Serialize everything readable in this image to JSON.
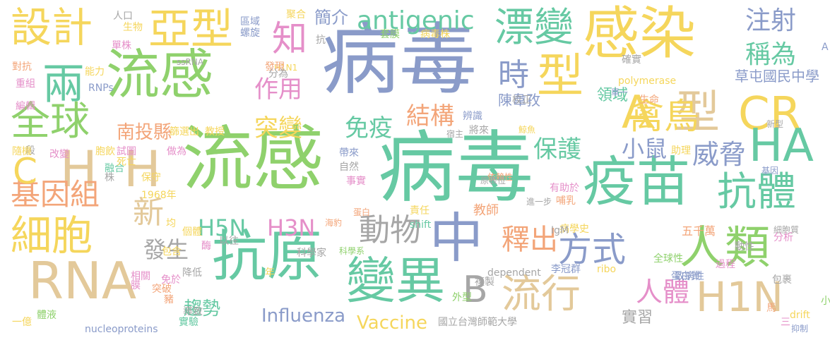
{
  "palette": {
    "green": "#8fd16c",
    "yellow": "#f5d65c",
    "tan": "#e3c99a",
    "slate": "#8a9bc9",
    "teal": "#66c9a3",
    "gray": "#a6a6a6",
    "orange": "#f3a579",
    "pink": "#e58fc9",
    "brown": "#d6bf93"
  },
  "words": [
    {
      "text": "病毒",
      "color": "#8a9bc9",
      "rotate": 0
    },
    {
      "text": "病毒",
      "color": "#66c9a3",
      "rotate": 0
    },
    {
      "text": "流感",
      "color": "#8fd16c",
      "rotate": 0
    },
    {
      "text": "流感",
      "color": "#8fd16c",
      "rotate": 0
    },
    {
      "text": "感染",
      "color": "#f5d65c",
      "rotate": 0
    },
    {
      "text": "疫苗",
      "color": "#66c9a3",
      "rotate": 0
    },
    {
      "text": "抗原",
      "color": "#66c9a3",
      "rotate": 0
    },
    {
      "text": "RNA",
      "color": "#e3c99a",
      "rotate": 0
    },
    {
      "text": "中",
      "color": "#8a9bc9",
      "rotate": 0
    },
    {
      "text": "人類",
      "color": "#8fd16c",
      "rotate": 0
    },
    {
      "text": "變異",
      "color": "#66c9a3",
      "rotate": 0
    },
    {
      "text": "H",
      "color": "#e3c99a",
      "rotate": 0
    },
    {
      "text": "H",
      "color": "#e3c99a",
      "rotate": 0
    },
    {
      "text": "型",
      "color": "#f5d65c",
      "rotate": 0
    },
    {
      "text": "A",
      "color": "#f5d65c",
      "rotate": 0
    },
    {
      "text": "型",
      "color": "#e3c99a",
      "rotate": 0
    },
    {
      "text": "CR",
      "color": "#f5d65c",
      "rotate": 0
    },
    {
      "text": "HA",
      "color": "#66c9a3",
      "rotate": 0
    },
    {
      "text": "H1N",
      "color": "#e3c99a",
      "rotate": 0
    },
    {
      "text": "設計",
      "color": "#f5d65c",
      "rotate": 0
    },
    {
      "text": "亞型",
      "color": "#f5d65c",
      "rotate": 0
    },
    {
      "text": "細胞",
      "color": "#f5d65c",
      "rotate": 0
    },
    {
      "text": "漂變",
      "color": "#66c9a3",
      "rotate": 0
    },
    {
      "text": "抗體",
      "color": "#66c9a3",
      "rotate": 0
    },
    {
      "text": "流行",
      "color": "#e3c99a",
      "rotate": 0
    },
    {
      "text": "全球",
      "color": "#8fd16c",
      "rotate": 0
    },
    {
      "text": "兩",
      "color": "#66c9a3",
      "rotate": 0
    },
    {
      "text": "基因組",
      "color": "#f3a579",
      "rotate": 0
    },
    {
      "text": "方式",
      "color": "#8a9bc9",
      "rotate": 0
    },
    {
      "text": "禽鳥",
      "color": "#f5d65c",
      "rotate": 0
    },
    {
      "text": "時",
      "color": "#8a9bc9",
      "rotate": 0
    },
    {
      "text": "知",
      "color": "#e58fc9",
      "rotate": 0
    },
    {
      "text": "B",
      "color": "#a6a6a6",
      "rotate": 0
    },
    {
      "text": "C",
      "color": "#f5d65c",
      "rotate": 0
    },
    {
      "text": "新",
      "color": "#e3c99a",
      "rotate": 0
    },
    {
      "text": "動物",
      "color": "#a6a6a6",
      "rotate": 0
    },
    {
      "text": "釋出",
      "color": "#f3a579",
      "rotate": 0
    },
    {
      "text": "antigenic",
      "color": "#66c9a3",
      "rotate": 0
    },
    {
      "text": "人體",
      "color": "#e58fc9",
      "rotate": 0
    },
    {
      "text": "威脅",
      "color": "#8a9bc9",
      "rotate": 0
    },
    {
      "text": "稱為",
      "color": "#66c9a3",
      "rotate": 0
    },
    {
      "text": "注射",
      "color": "#8a9bc9",
      "rotate": 0
    },
    {
      "text": "作用",
      "color": "#e58fc9",
      "rotate": 0
    },
    {
      "text": "突變",
      "color": "#f5d65c",
      "rotate": 0
    },
    {
      "text": "結構",
      "color": "#f3a579",
      "rotate": 0
    },
    {
      "text": "免疫",
      "color": "#66c9a3",
      "rotate": 0
    },
    {
      "text": "保護",
      "color": "#66c9a3",
      "rotate": 0
    },
    {
      "text": "小鼠",
      "color": "#8a9bc9",
      "rotate": 0
    },
    {
      "text": "發生",
      "color": "#a6a6a6",
      "rotate": 0
    },
    {
      "text": "H5N",
      "color": "#66c9a3",
      "rotate": 0
    },
    {
      "text": "H3N",
      "color": "#e58fc9",
      "rotate": 0
    },
    {
      "text": "趨勢",
      "color": "#66c9a3",
      "rotate": 0
    },
    {
      "text": "Influenza",
      "color": "#8a9bc9",
      "rotate": 0
    },
    {
      "text": "Vaccine",
      "color": "#f5d65c",
      "rotate": 0
    },
    {
      "text": "南投縣",
      "color": "#f3a579",
      "rotate": 0
    },
    {
      "text": "簡介",
      "color": "#8a9bc9",
      "rotate": 0
    },
    {
      "text": "實習",
      "color": "#a6a6a6",
      "rotate": 0
    },
    {
      "text": "陳韋孜",
      "color": "#8a9bc9",
      "rotate": 0
    },
    {
      "text": "領域",
      "color": "#66c9a3",
      "rotate": 0
    },
    {
      "text": "草屯國民中學",
      "color": "#8a9bc9",
      "rotate": 0
    },
    {
      "text": "polymerase",
      "color": "#f5d65c",
      "rotate": 0
    },
    {
      "text": "教師",
      "color": "#f3a579",
      "rotate": 0
    },
    {
      "text": "國立台灣師範大學",
      "color": "#a6a6a6",
      "rotate": 0
    },
    {
      "text": "nucleoproteins",
      "color": "#8a9bc9",
      "rotate": 0
    },
    {
      "text": "dependent",
      "color": "#a6a6a6",
      "rotate": 0
    },
    {
      "text": "李冠群",
      "color": "#8a9bc9",
      "rotate": 0
    },
    {
      "text": "五千萬",
      "color": "#f3a579",
      "rotate": 0
    },
    {
      "text": "全球性",
      "color": "#8fd16c",
      "rotate": 0
    },
    {
      "text": "蛋白質",
      "color": "#8a9bc9",
      "rotate": 0
    },
    {
      "text": "細胞質",
      "color": "#a6a6a6",
      "rotate": 0
    },
    {
      "text": "病學史",
      "color": "#f5d65c",
      "rotate": 0
    },
    {
      "text": "科學系",
      "color": "#8fd16c",
      "rotate": 0
    },
    {
      "text": "科學家",
      "color": "#a6a6a6",
      "rotate": 0
    },
    {
      "text": "進一步",
      "color": "#a6a6a6",
      "rotate": 0
    },
    {
      "text": "依賴性",
      "color": "#f3a579",
      "rotate": 0
    },
    {
      "text": "病毒株",
      "color": "#f5d65c",
      "rotate": 0
    },
    {
      "text": "套膜",
      "color": "#8fd16c",
      "rotate": 0
    },
    {
      "text": "教授",
      "color": "#f5d65c",
      "rotate": 0
    },
    {
      "text": "篩選出",
      "color": "#f5d65c",
      "rotate": 0
    },
    {
      "text": "1968年",
      "color": "#f5d65c",
      "rotate": 0
    },
    {
      "text": "shift",
      "color": "#66c9a3",
      "rotate": 0
    },
    {
      "text": "drift",
      "color": "#f5d65c",
      "rotate": 0
    },
    {
      "text": "ribo",
      "color": "#f5d65c",
      "rotate": 0
    },
    {
      "text": "IgM",
      "color": "#a6a6a6",
      "rotate": 0
    },
    {
      "text": "RNPs",
      "color": "#8a9bc9",
      "rotate": 0
    },
    {
      "text": "ssRNA",
      "color": "#a6a6a6",
      "rotate": 0
    },
    {
      "text": "H1N1",
      "color": "#f5d65c",
      "rotate": 0
    },
    {
      "text": "抑制",
      "color": "#8a9bc9",
      "rotate": 0
    },
    {
      "text": "確實",
      "color": "#a6a6a6",
      "rotate": 0
    },
    {
      "text": "單一",
      "color": "#8a9bc9",
      "rotate": 0
    },
    {
      "text": "生命",
      "color": "#f3a579",
      "rotate": 0
    },
    {
      "text": "校正",
      "color": "#a6a6a6",
      "rotate": 0
    },
    {
      "text": "辨識",
      "color": "#8a9bc9",
      "rotate": 0
    },
    {
      "text": "宿主",
      "color": "#a6a6a6",
      "rotate": 0
    },
    {
      "text": "將來",
      "color": "#a6a6a6",
      "rotate": 0
    },
    {
      "text": "鯨魚",
      "color": "#f5d65c",
      "rotate": 0
    },
    {
      "text": "新型",
      "color": "#a6a6a6",
      "rotate": 0
    },
    {
      "text": "助理",
      "color": "#f5d65c",
      "rotate": 0
    },
    {
      "text": "帶來",
      "color": "#8a9bc9",
      "rotate": 0
    },
    {
      "text": "自然",
      "color": "#a6a6a6",
      "rotate": 0
    },
    {
      "text": "事實",
      "color": "#e58fc9",
      "rotate": 0
    },
    {
      "text": "原表位",
      "color": "#a6a6a6",
      "rotate": 0
    },
    {
      "text": "有助於",
      "color": "#e58fc9",
      "rotate": 0
    },
    {
      "text": "基因",
      "color": "#8a9bc9",
      "rotate": 0
    },
    {
      "text": "蛋白",
      "color": "#f3a579",
      "rotate": 0
    },
    {
      "text": "責任",
      "color": "#f5d65c",
      "rotate": 0
    },
    {
      "text": "海豹",
      "color": "#f3a579",
      "rotate": 0
    },
    {
      "text": "哺乳",
      "color": "#f3a579",
      "rotate": 0
    },
    {
      "text": "分析",
      "color": "#e58fc9",
      "rotate": 0
    },
    {
      "text": "動性",
      "color": "#a6a6a6",
      "rotate": 0
    },
    {
      "text": "過程",
      "color": "#e58fc9",
      "rotate": 0
    },
    {
      "text": "包裹",
      "color": "#a6a6a6",
      "rotate": 0
    },
    {
      "text": "致病性",
      "color": "#8a9bc9",
      "rotate": 0
    },
    {
      "text": "複製",
      "color": "#a6a6a6",
      "rotate": 0
    },
    {
      "text": "外型",
      "color": "#8fd16c",
      "rotate": 0
    },
    {
      "text": "馬",
      "color": "#f3a579",
      "rotate": 0
    },
    {
      "text": "三",
      "color": "#e58fc9",
      "rotate": 0
    },
    {
      "text": "小體",
      "color": "#8fd16c",
      "rotate": 0
    },
    {
      "text": "以往",
      "color": "#a6a6a6",
      "rotate": 0
    },
    {
      "text": "酶",
      "color": "#e58fc9",
      "rotate": 0
    },
    {
      "text": "個體",
      "color": "#f5d65c",
      "rotate": 0
    },
    {
      "text": "均",
      "color": "#f5d65c",
      "rotate": 0
    },
    {
      "text": "包含",
      "color": "#f5d65c",
      "rotate": 0
    },
    {
      "text": "降低",
      "color": "#a6a6a6",
      "rotate": 0
    },
    {
      "text": "年",
      "color": "#f5d65c",
      "rotate": 0
    },
    {
      "text": "免於",
      "color": "#e58fc9",
      "rotate": 0
    },
    {
      "text": "相關",
      "color": "#e58fc9",
      "rotate": 0
    },
    {
      "text": "膜",
      "color": "#e58fc9",
      "rotate": 0
    },
    {
      "text": "突破",
      "color": "#f3a579",
      "rotate": 0
    },
    {
      "text": "豬",
      "color": "#f3a579",
      "rotate": 0
    },
    {
      "text": "導致",
      "color": "#a6a6a6",
      "rotate": 0
    },
    {
      "text": "實驗",
      "color": "#66c9a3",
      "rotate": 0
    },
    {
      "text": "體液",
      "color": "#8fd16c",
      "rotate": 0
    },
    {
      "text": "一億",
      "color": "#f5d65c",
      "rotate": 0
    },
    {
      "text": "改變",
      "color": "#e58fc9",
      "rotate": 0
    },
    {
      "text": "保守",
      "color": "#f5d65c",
      "rotate": 0
    },
    {
      "text": "融合",
      "color": "#66c9a3",
      "rotate": 0
    },
    {
      "text": "株",
      "color": "#a6a6a6",
      "rotate": 0
    },
    {
      "text": "死亡",
      "color": "#f5d65c",
      "rotate": 0
    },
    {
      "text": "做為",
      "color": "#e58fc9",
      "rotate": 0
    },
    {
      "text": "胞飲",
      "color": "#f5d65c",
      "rotate": 0
    },
    {
      "text": "試圖",
      "color": "#e58fc9",
      "rotate": 0
    },
    {
      "text": "段",
      "color": "#a6a6a6",
      "rotate": 0
    },
    {
      "text": "隨機",
      "color": "#f5d65c",
      "rotate": 0
    },
    {
      "text": "編輯",
      "color": "#e58fc9",
      "rotate": 0
    },
    {
      "text": "重組",
      "color": "#e58fc9",
      "rotate": 0
    },
    {
      "text": "對抗",
      "color": "#f3a579",
      "rotate": 0
    },
    {
      "text": "能力",
      "color": "#f5d65c",
      "rotate": 0
    },
    {
      "text": "單株",
      "color": "#e58fc9",
      "rotate": 0
    },
    {
      "text": "生物",
      "color": "#f5d65c",
      "rotate": 0
    },
    {
      "text": "人口",
      "color": "#a6a6a6",
      "rotate": 0
    },
    {
      "text": "區域",
      "color": "#8a9bc9",
      "rotate": 0
    },
    {
      "text": "螺旋",
      "color": "#8a9bc9",
      "rotate": 0
    },
    {
      "text": "發現",
      "color": "#f3a579",
      "rotate": 0
    },
    {
      "text": "分為",
      "color": "#a6a6a6",
      "rotate": 0
    },
    {
      "text": "聚合",
      "color": "#f5d65c",
      "rotate": 0
    },
    {
      "text": "抗",
      "color": "#a6a6a6",
      "rotate": 0
    },
    {
      "text": "A",
      "color": "#8a9bc9",
      "rotate": 0
    }
  ]
}
